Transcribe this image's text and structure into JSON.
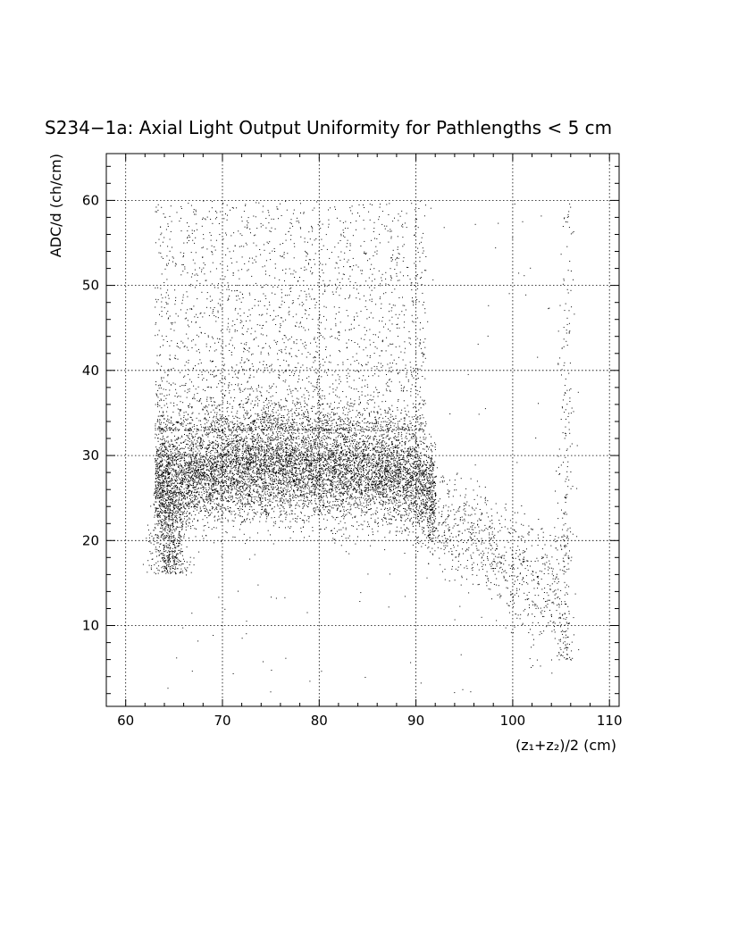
{
  "chart_data": {
    "type": "scatter",
    "title": "S234−1a: Axial Light Output Uniformity for Pathlengths < 5 cm",
    "xlabel": "(z₁+z₂)/2 (cm)",
    "ylabel": "ADC/d (ch/cm)",
    "xlim": [
      58,
      111
    ],
    "ylim": [
      0.5,
      65.5
    ],
    "xticks": [
      60,
      70,
      80,
      90,
      100,
      110
    ],
    "yticks": [
      10,
      20,
      30,
      40,
      50,
      60
    ],
    "grid": true,
    "legend": "none",
    "marker_color": "#000000",
    "density_regions": [
      {
        "region": "main band",
        "x_range": [
          63,
          92
        ],
        "y_center": 27.5,
        "y_spread": 3.0
      },
      {
        "region": "upper scatter",
        "x_range": [
          63,
          91
        ],
        "y_range": [
          33,
          60
        ]
      },
      {
        "region": "low-x tail",
        "x": 64.5,
        "y_range": [
          16,
          26
        ]
      },
      {
        "region": "falloff",
        "x_range": [
          91,
          105
        ],
        "y_center_start": 24,
        "y_center_end": 13
      },
      {
        "region": "edge strip",
        "x": 105.5,
        "y_range": [
          6,
          60
        ]
      }
    ],
    "points": [
      [
        63.2,
        30.5
      ],
      [
        63.5,
        25.1
      ],
      [
        64.1,
        22.0
      ],
      [
        64.5,
        20.2
      ],
      [
        64.8,
        18.5
      ],
      [
        65.2,
        27.4
      ],
      [
        66.0,
        26.1
      ],
      [
        67.5,
        28.3
      ],
      [
        68.9,
        29.0
      ],
      [
        70.2,
        27.6
      ],
      [
        71.4,
        30.2
      ],
      [
        72.8,
        28.8
      ],
      [
        74.1,
        27.9
      ],
      [
        75.6,
        29.4
      ],
      [
        77.0,
        30.1
      ],
      [
        78.3,
        28.2
      ],
      [
        79.7,
        29.5
      ],
      [
        81.2,
        29.8
      ],
      [
        82.6,
        28.4
      ],
      [
        84.0,
        27.9
      ],
      [
        85.5,
        28.6
      ],
      [
        86.9,
        27.2
      ],
      [
        88.3,
        26.8
      ],
      [
        89.6,
        27.5
      ],
      [
        90.8,
        25.9
      ],
      [
        66.5,
        45.2
      ],
      [
        68.0,
        52.1
      ],
      [
        70.5,
        48.3
      ],
      [
        72.0,
        57.6
      ],
      [
        74.8,
        42.9
      ],
      [
        76.2,
        55.0
      ],
      [
        78.9,
        38.7
      ],
      [
        80.5,
        50.2
      ],
      [
        82.0,
        44.6
      ],
      [
        84.7,
        53.8
      ],
      [
        86.1,
        39.4
      ],
      [
        88.5,
        47.0
      ],
      [
        63.3,
        58.9
      ],
      [
        67.2,
        58.4
      ],
      [
        71.0,
        59.2
      ],
      [
        93.0,
        22.5
      ],
      [
        95.2,
        19.8
      ],
      [
        96.8,
        18.1
      ],
      [
        98.5,
        16.4
      ],
      [
        100.1,
        14.9
      ],
      [
        101.6,
        13.2
      ],
      [
        103.0,
        11.8
      ],
      [
        104.2,
        10.5
      ],
      [
        94.5,
        12.3
      ],
      [
        97.1,
        25.0
      ],
      [
        105.3,
        58.0
      ],
      [
        105.6,
        46.2
      ],
      [
        105.8,
        33.1
      ],
      [
        105.4,
        27.0
      ],
      [
        105.7,
        18.0
      ],
      [
        105.5,
        9.4
      ],
      [
        102.5,
        6.0
      ],
      [
        100.0,
        9.2
      ],
      [
        79.0,
        3.5
      ],
      [
        76.5,
        6.2
      ],
      [
        69.0,
        8.9
      ],
      [
        75.0,
        13.4
      ],
      [
        85.0,
        16.1
      ],
      [
        66.8,
        11.5
      ],
      [
        82.5,
        20.8
      ]
    ]
  }
}
